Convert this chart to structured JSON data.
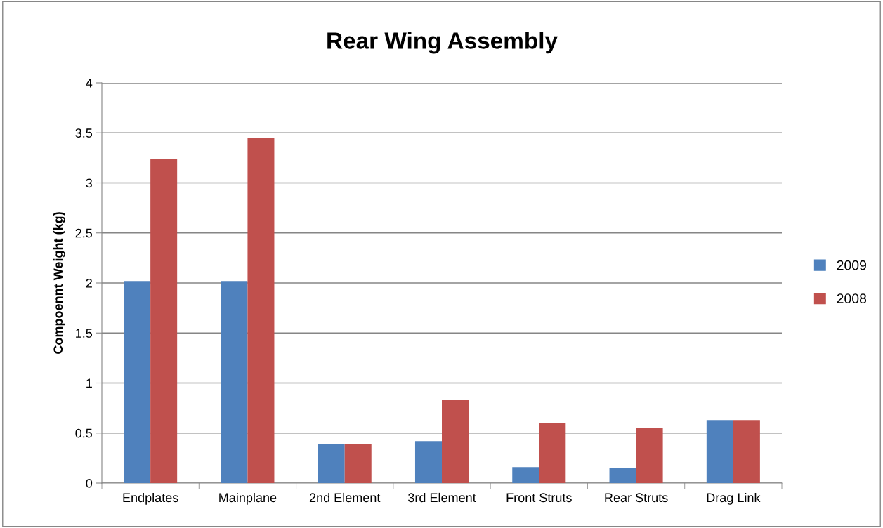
{
  "chart_data": {
    "type": "bar",
    "title": "Rear Wing Assembly",
    "ylabel": "Compoennt Weight (kg)",
    "categories": [
      "Endplates",
      "Mainplane",
      "2nd Element",
      "3rd Element",
      "Front Struts",
      "Rear Struts",
      "Drag Link"
    ],
    "series": [
      {
        "name": "2009",
        "color": "#4f81bd",
        "values": [
          2.02,
          2.02,
          0.39,
          0.42,
          0.16,
          0.155,
          0.63
        ]
      },
      {
        "name": "2008",
        "color": "#c0504d",
        "values": [
          3.24,
          3.45,
          0.39,
          0.83,
          0.6,
          0.55,
          0.63
        ]
      }
    ],
    "ylim": [
      0,
      4
    ],
    "yticks": [
      0,
      0.5,
      1,
      1.5,
      2,
      2.5,
      3,
      3.5,
      4
    ],
    "grid": "y",
    "legend": "right"
  }
}
